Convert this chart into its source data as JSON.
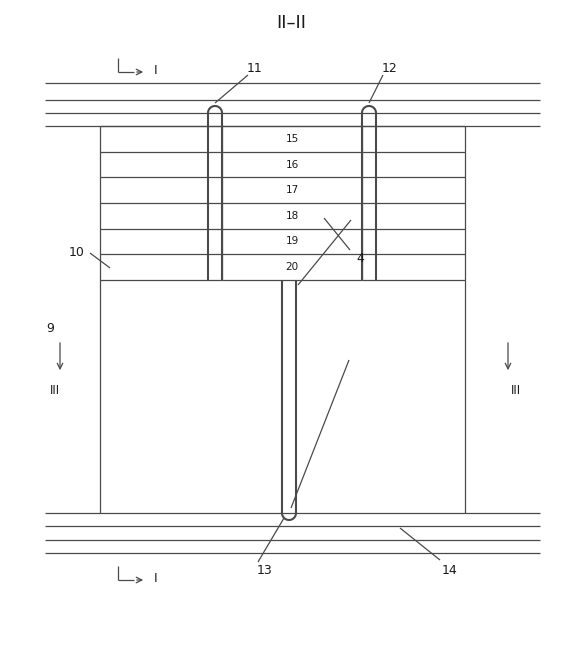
{
  "title": "II－II",
  "bg_color": "#ffffff",
  "line_color": "#4a4a4a",
  "text_color": "#1a1a1a",
  "fig_width": 5.81,
  "fig_height": 6.48,
  "dpi": 100,
  "row_labels": [
    "15",
    "16",
    "17",
    "18",
    "19",
    "20"
  ]
}
